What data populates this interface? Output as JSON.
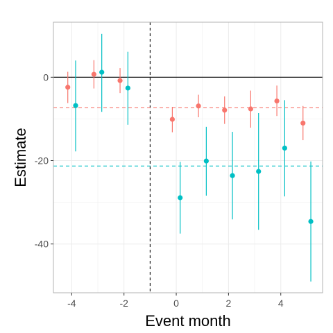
{
  "chart_data": {
    "type": "scatter",
    "xlabel": "Event month",
    "ylabel": "Estimate",
    "xlim": [
      -4.7,
      5.6
    ],
    "ylim": [
      -51.7,
      13.2
    ],
    "x_ticks": [
      -4,
      -2,
      0,
      2,
      4
    ],
    "x_tick_labels": [
      "-4",
      "-2",
      "0",
      "2",
      "4"
    ],
    "y_ticks": [
      -40,
      -20,
      0
    ],
    "y_tick_labels": [
      "-40",
      "-20",
      "0"
    ],
    "grid": true,
    "legend": "none",
    "reference_lines": {
      "event_time_x": -1,
      "zero_y": 0
    },
    "series": [
      {
        "color": "#F8766D",
        "mean_line": -7.3,
        "points": [
          {
            "x": -4.15,
            "y": -2.4,
            "lo": -6.2,
            "hi": 1.3
          },
          {
            "x": -3.15,
            "y": 0.7,
            "lo": -2.7,
            "hi": 4.1
          },
          {
            "x": -2.15,
            "y": -0.8,
            "lo": -3.8,
            "hi": 2.2
          },
          {
            "x": -0.15,
            "y": -10.1,
            "lo": -13.2,
            "hi": -7.1
          },
          {
            "x": 0.85,
            "y": -6.9,
            "lo": -9.6,
            "hi": -4.2
          },
          {
            "x": 1.85,
            "y": -7.9,
            "lo": -11.2,
            "hi": -4.6
          },
          {
            "x": 2.85,
            "y": -7.6,
            "lo": -12.1,
            "hi": -3.2
          },
          {
            "x": 3.85,
            "y": -5.7,
            "lo": -9.3,
            "hi": -2.0
          },
          {
            "x": 4.85,
            "y": -11.0,
            "lo": -15.1,
            "hi": -6.9
          }
        ]
      },
      {
        "color": "#00BFC4",
        "mean_line": -21.3,
        "points": [
          {
            "x": -3.85,
            "y": -6.8,
            "lo": -17.8,
            "hi": 4.0
          },
          {
            "x": -2.85,
            "y": 1.2,
            "lo": -8.3,
            "hi": 10.4
          },
          {
            "x": -1.85,
            "y": -2.6,
            "lo": -11.4,
            "hi": 6.1
          },
          {
            "x": 0.15,
            "y": -28.9,
            "lo": -37.5,
            "hi": -20.3
          },
          {
            "x": 1.15,
            "y": -20.1,
            "lo": -28.4,
            "hi": -11.9
          },
          {
            "x": 2.15,
            "y": -23.6,
            "lo": -34.1,
            "hi": -13.1
          },
          {
            "x": 3.15,
            "y": -22.6,
            "lo": -36.6,
            "hi": -8.6
          },
          {
            "x": 4.15,
            "y": -17.0,
            "lo": -28.6,
            "hi": -5.5
          },
          {
            "x": 5.15,
            "y": -34.6,
            "lo": -49.0,
            "hi": -20.2
          }
        ]
      }
    ]
  }
}
